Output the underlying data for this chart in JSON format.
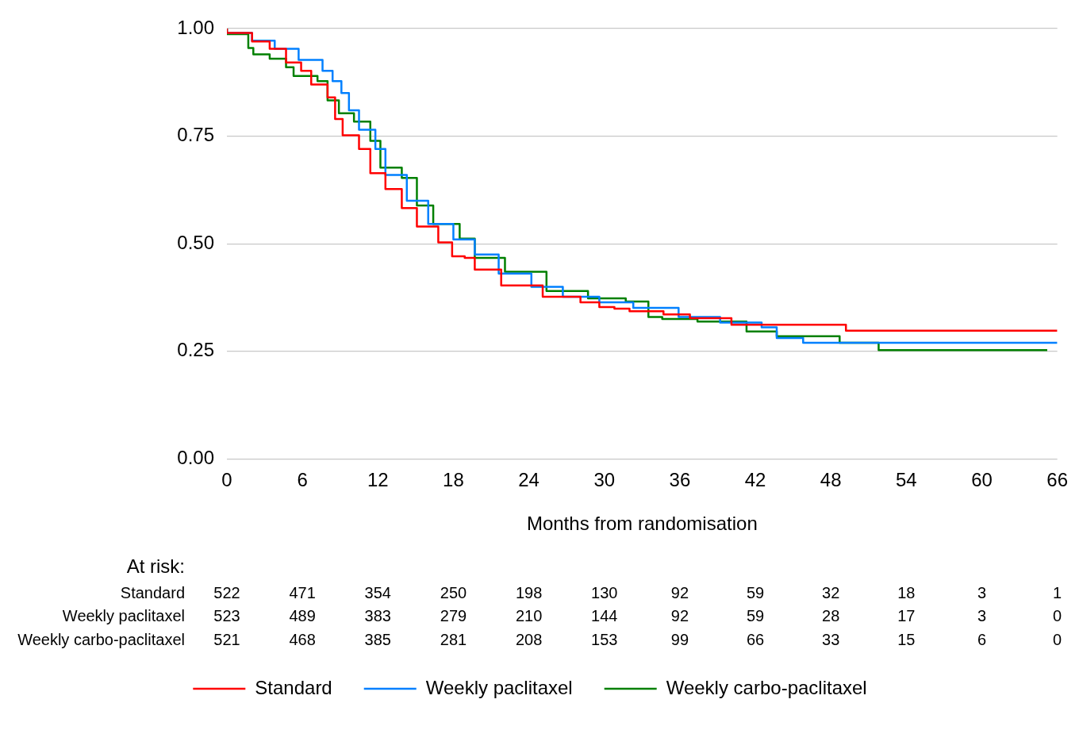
{
  "chart_data": {
    "type": "step",
    "xlabel": "Months from randomisation",
    "xlim": [
      0,
      66
    ],
    "xticks": [
      0,
      6,
      12,
      18,
      24,
      30,
      36,
      42,
      48,
      54,
      60,
      66
    ],
    "ylim": [
      0,
      1
    ],
    "yticks": [
      {
        "value": 0,
        "label": "0.00"
      },
      {
        "value": 0.25,
        "label": "0.25"
      },
      {
        "value": 0.5,
        "label": "0.50"
      },
      {
        "value": 0.75,
        "label": "0.75"
      },
      {
        "value": 1,
        "label": "1.00"
      }
    ],
    "grid": "y",
    "legend": "bottom",
    "marker": "none",
    "line_style": "solid",
    "series": [
      {
        "name": "Standard",
        "color": "#ff0000",
        "x": [
          0,
          2,
          3.4,
          4.7,
          5.9,
          6.7,
          8,
          8.6,
          9.2,
          10.5,
          11.4,
          12.6,
          13.9,
          15.1,
          16.8,
          17.9,
          18.9,
          19.7,
          21.8,
          25.1,
          28.1,
          29.6,
          30.8,
          32,
          34.7,
          36.8,
          40.1,
          49.2,
          50.3,
          66
        ],
        "values": [
          1,
          0.99,
          0.97,
          0.953,
          0.921,
          0.902,
          0.87,
          0.84,
          0.79,
          0.752,
          0.72,
          0.664,
          0.627,
          0.583,
          0.54,
          0.503,
          0.471,
          0.467,
          0.44,
          0.403,
          0.377,
          0.364,
          0.353,
          0.349,
          0.343,
          0.336,
          0.327,
          0.312,
          0.298,
          0.298
        ]
      },
      {
        "name": "Weekly paclitaxel",
        "color": "#0080ff",
        "x": [
          0,
          2,
          3.8,
          5.7,
          7.6,
          8.4,
          9.1,
          9.7,
          10.5,
          11.8,
          12.6,
          14.3,
          16,
          18,
          19.7,
          21.6,
          24.2,
          26.7,
          29.6,
          32.3,
          35.9,
          39.2,
          42.5,
          43.7,
          45.8,
          50.7,
          66
        ],
        "values": [
          1,
          0.99,
          0.972,
          0.953,
          0.927,
          0.902,
          0.878,
          0.85,
          0.81,
          0.765,
          0.72,
          0.66,
          0.6,
          0.546,
          0.51,
          0.475,
          0.431,
          0.4,
          0.377,
          0.364,
          0.351,
          0.33,
          0.317,
          0.306,
          0.281,
          0.27,
          0.27
        ]
      },
      {
        "name": "Weekly carbo-paclitaxel",
        "color": "#008000",
        "x": [
          0,
          1.7,
          2.1,
          3.4,
          4.7,
          5.3,
          7.2,
          8,
          8.9,
          10.1,
          11.4,
          12.2,
          13.9,
          15.1,
          16.4,
          18.5,
          19.7,
          22.1,
          25.4,
          28.7,
          31.7,
          33.5,
          34.6,
          37.4,
          41.3,
          43.7,
          48.7,
          51.8,
          53.9,
          65.2
        ],
        "values": [
          1,
          0.987,
          0.955,
          0.94,
          0.93,
          0.91,
          0.89,
          0.878,
          0.833,
          0.803,
          0.784,
          0.739,
          0.677,
          0.653,
          0.589,
          0.546,
          0.512,
          0.467,
          0.435,
          0.39,
          0.373,
          0.366,
          0.33,
          0.325,
          0.319,
          0.296,
          0.285,
          0.27,
          0.253,
          0.253
        ]
      }
    ],
    "annotations": [
      "At risk:",
      "Standard",
      "522",
      "471",
      "354",
      "250",
      "198",
      "130",
      "92",
      "59",
      "32",
      "18",
      "3",
      "1",
      "Weekly paclitaxel",
      "523",
      "489",
      "383",
      "279",
      "210",
      "144",
      "92",
      "59",
      "28",
      "17",
      "3",
      "0",
      "Weekly carbo-paclitaxel",
      "521",
      "468",
      "385",
      "281",
      "208",
      "153",
      "99",
      "66",
      "33",
      "15",
      "6",
      "0"
    ]
  }
}
